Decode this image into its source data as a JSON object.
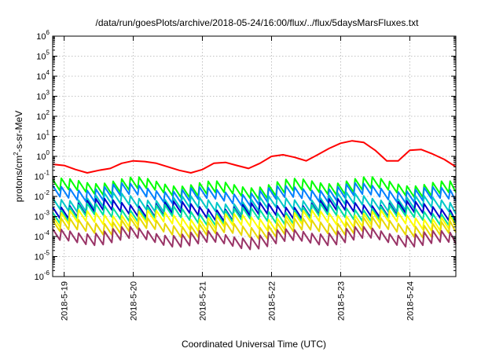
{
  "chart_data": {
    "type": "line",
    "title": "/data/run/goesPlots/archive/2018-05-24/16:00/flux/../flux/5daysMarsFluxes.txt",
    "xlabel": "Coordinated Universal Time (UTC)",
    "ylabel": "protons/cm²-s-sr-MeV",
    "ylabel_parts": [
      "protons/cm",
      "2",
      "-s-sr-MeV"
    ],
    "yscale": "log",
    "ylim": [
      1e-06,
      1000000.0
    ],
    "yticks": [
      {
        "value": 1e-06,
        "base": "10",
        "exp": "-6"
      },
      {
        "value": 1e-05,
        "base": "10",
        "exp": "-5"
      },
      {
        "value": 0.0001,
        "base": "10",
        "exp": "-4"
      },
      {
        "value": 0.001,
        "base": "10",
        "exp": "-3"
      },
      {
        "value": 0.01,
        "base": "10",
        "exp": "-2"
      },
      {
        "value": 0.1,
        "base": "10",
        "exp": "-1"
      },
      {
        "value": 1,
        "base": "10",
        "exp": "0"
      },
      {
        "value": 10,
        "base": "10",
        "exp": "1"
      },
      {
        "value": 100,
        "base": "10",
        "exp": "2"
      },
      {
        "value": 1000,
        "base": "10",
        "exp": "3"
      },
      {
        "value": 10000,
        "base": "10",
        "exp": "4"
      },
      {
        "value": 100000,
        "base": "10",
        "exp": "5"
      },
      {
        "value": 1000000,
        "base": "10",
        "exp": "6"
      }
    ],
    "xlim": [
      "2018-05-18T20:00",
      "2018-05-24T16:00"
    ],
    "xticks": [
      "2018-5-19",
      "2018-5-20",
      "2018-5-21",
      "2018-5-22",
      "2018-5-23",
      "2018-5-24"
    ],
    "grid": true,
    "series": [
      {
        "color": "#ff0000",
        "x": [
          "2018-05-18T20:00",
          "2018-05-19T00:00",
          "2018-05-19T04:00",
          "2018-05-19T08:00",
          "2018-05-19T12:00",
          "2018-05-19T16:00",
          "2018-05-19T20:00",
          "2018-05-20T00:00",
          "2018-05-20T04:00",
          "2018-05-20T08:00",
          "2018-05-20T12:00",
          "2018-05-20T16:00",
          "2018-05-20T20:00",
          "2018-05-21T00:00",
          "2018-05-21T04:00",
          "2018-05-21T08:00",
          "2018-05-21T12:00",
          "2018-05-21T16:00",
          "2018-05-21T20:00",
          "2018-05-22T00:00",
          "2018-05-22T04:00",
          "2018-05-22T08:00",
          "2018-05-22T12:00",
          "2018-05-22T16:00",
          "2018-05-22T20:00",
          "2018-05-23T00:00",
          "2018-05-23T04:00",
          "2018-05-23T08:00",
          "2018-05-23T12:00",
          "2018-05-23T16:00",
          "2018-05-23T20:00",
          "2018-05-24T00:00",
          "2018-05-24T04:00",
          "2018-05-24T08:00",
          "2018-05-24T12:00",
          "2018-05-24T16:00"
        ],
        "y": [
          0.4,
          0.35,
          0.22,
          0.15,
          0.2,
          0.25,
          0.45,
          0.6,
          0.55,
          0.45,
          0.3,
          0.2,
          0.15,
          0.22,
          0.45,
          0.5,
          0.35,
          0.25,
          0.45,
          1.0,
          1.2,
          0.9,
          0.6,
          1.2,
          2.5,
          4.5,
          6.0,
          5.0,
          2.0,
          0.6,
          0.6,
          2.0,
          2.2,
          1.3,
          0.7,
          0.3
        ]
      },
      {
        "color": "#00ff00",
        "base": 0.025,
        "sawtooth": true
      },
      {
        "color": "#0080ff",
        "base": 0.012,
        "sawtooth": true
      },
      {
        "color": "#00c8c8",
        "base": 0.004,
        "sawtooth": true
      },
      {
        "color": "#0000cc",
        "base": 0.002,
        "sawtooth": true
      },
      {
        "color": "#00e0a0",
        "base": 0.0012,
        "sawtooth": true
      },
      {
        "color": "#ffff00",
        "base": 0.0006,
        "sawtooth": true
      },
      {
        "color": "#e8d800",
        "base": 0.00025,
        "sawtooth": true
      },
      {
        "color": "#993366",
        "base": 8e-05,
        "sawtooth": true
      }
    ]
  }
}
